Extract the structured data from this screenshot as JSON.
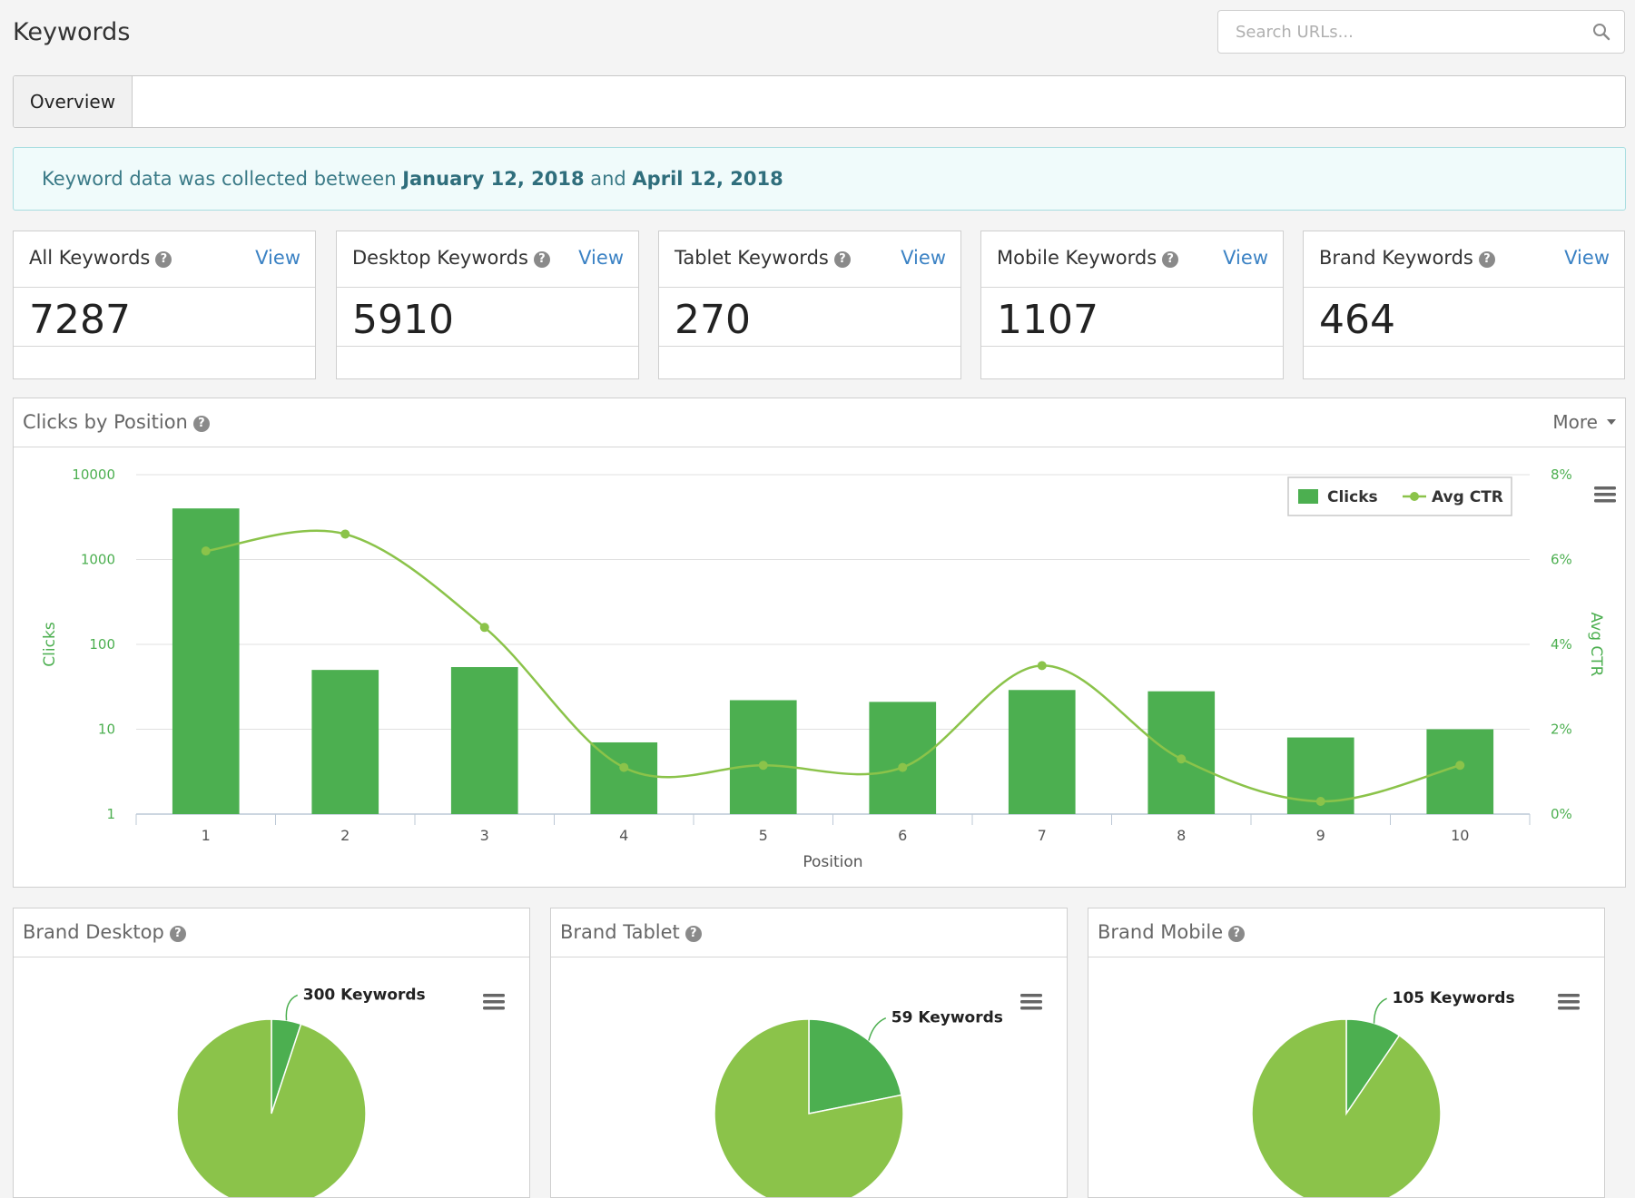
{
  "header": {
    "title": "Keywords",
    "search_placeholder": "Search URLs..."
  },
  "tabs": [
    {
      "label": "Overview",
      "active": true
    }
  ],
  "alert": {
    "prefix": "Keyword data was collected between ",
    "start_date": "January 12, 2018",
    "middle": " and ",
    "end_date": "April 12, 2018"
  },
  "stats": [
    {
      "label": "All Keywords",
      "view": "View",
      "value": "7287"
    },
    {
      "label": "Desktop Keywords",
      "view": "View",
      "value": "5910"
    },
    {
      "label": "Tablet Keywords",
      "view": "View",
      "value": "270"
    },
    {
      "label": "Mobile Keywords",
      "view": "View",
      "value": "1107"
    },
    {
      "label": "Brand Keywords",
      "view": "View",
      "value": "464"
    }
  ],
  "help_glyph": "?",
  "clicks_panel": {
    "title": "Clicks by Position",
    "more_label": "More"
  },
  "colors": {
    "bar": "#4caf50",
    "line": "#8bc34a",
    "axis_text": "#4caf50",
    "pie_main": "#8bc34a",
    "pie_slice": "#4caf50"
  },
  "chart_data": [
    {
      "type": "bar",
      "subtype": "bar+line, dual axis",
      "title": "",
      "xlabel": "Position",
      "ylabel": "Clicks",
      "y2label": "Avg CTR",
      "categories": [
        "1",
        "2",
        "3",
        "4",
        "5",
        "6",
        "7",
        "8",
        "9",
        "10"
      ],
      "y_scale": "log",
      "y_ticks": [
        "10000",
        "1000",
        "100",
        "10",
        "1"
      ],
      "y2_ticks": [
        "8%",
        "6%",
        "4%",
        "2%",
        "0%"
      ],
      "ylim": [
        1,
        10000
      ],
      "y2lim": [
        0,
        8
      ],
      "legend": {
        "position": "top-right",
        "items": [
          "Clicks",
          "Avg CTR"
        ]
      },
      "series": [
        {
          "name": "Clicks",
          "type": "bar",
          "values": [
            4000,
            50,
            54,
            7,
            22,
            21,
            29,
            28,
            8,
            10
          ]
        },
        {
          "name": "Avg CTR",
          "type": "spline",
          "unit": "%",
          "values": [
            6.2,
            6.6,
            4.4,
            1.1,
            1.15,
            1.1,
            3.5,
            1.3,
            0.3,
            1.15
          ]
        }
      ]
    },
    {
      "type": "pie",
      "title": "Brand Desktop",
      "slices": [
        {
          "label": "300 Keywords",
          "value": 300
        },
        {
          "label": "",
          "value": 5610
        }
      ]
    },
    {
      "type": "pie",
      "title": "Brand Tablet",
      "slices": [
        {
          "label": "59 Keywords",
          "value": 59
        },
        {
          "label": "",
          "value": 211
        }
      ]
    },
    {
      "type": "pie",
      "title": "Brand Mobile",
      "slices": [
        {
          "label": "105 Keywords",
          "value": 105
        },
        {
          "label": "",
          "value": 1002
        }
      ]
    }
  ]
}
